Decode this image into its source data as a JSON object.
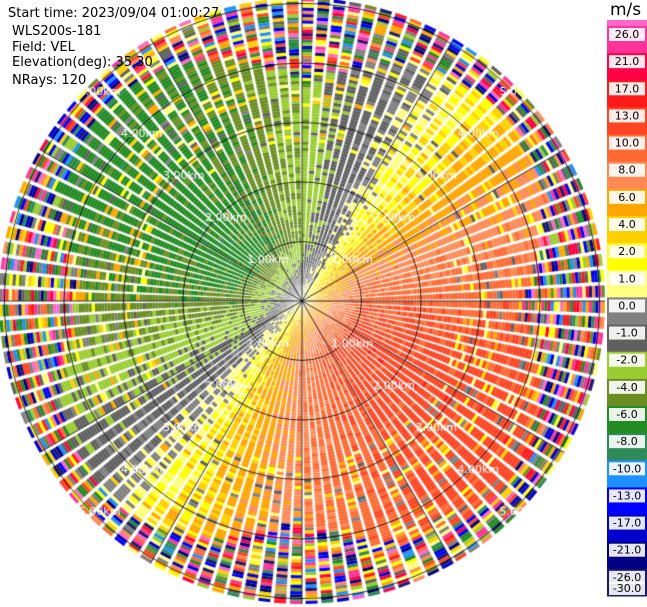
{
  "header": {
    "start_time": "Start time: 2023/09/04 01:00:27",
    "site": "WLS200s-181",
    "field": "Field: VEL",
    "elevation": "Elevation(deg): 35.30",
    "nrays": "NRays: 120"
  },
  "range_rings": {
    "labels": [
      "1.00km",
      "2.00km",
      "3.00km",
      "4.00km",
      "5.00km"
    ]
  },
  "colorbar": {
    "unit": "m/s",
    "ticks": [
      "26.0",
      "21.0",
      "17.0",
      "13.0",
      "10.0",
      "8.0",
      "6.0",
      "4.0",
      "2.0",
      "1.0",
      "0.0",
      "-1.0",
      "-2.0",
      "-4.0",
      "-6.0",
      "-8.0",
      "-10.0",
      "-13.0",
      "-17.0",
      "-21.0",
      "-26.0",
      "-30.0"
    ],
    "colors": [
      "#ff3399",
      "#ff0044",
      "#ff1a1a",
      "#ff4422",
      "#ff6a33",
      "#ff8a55",
      "#ffa500",
      "#ffd000",
      "#ffff00",
      "#ffff80",
      "#808080",
      "#606060",
      "#9acd32",
      "#6b8e23",
      "#228b22",
      "#2e8b57",
      "#1e90ff",
      "#0000ff",
      "#0000cd",
      "#000080",
      "#191970"
    ],
    "top_color": "#ff66cc"
  }
}
